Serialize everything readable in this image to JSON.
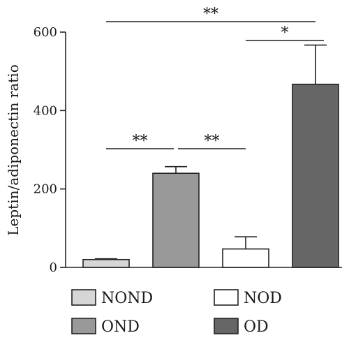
{
  "chart_data": {
    "type": "bar",
    "categories": [
      "NOND",
      "OND",
      "NOD",
      "OD"
    ],
    "values": [
      20,
      240,
      47,
      467
    ],
    "errors": [
      2,
      17,
      31,
      100
    ],
    "colors": [
      "#d6d6d6",
      "#999999",
      "#ffffff",
      "#666666"
    ],
    "ylabel": "Leptin/adiponectin ratio",
    "ylim": [
      0,
      600
    ],
    "yticks": [
      0,
      200,
      400,
      600
    ],
    "grid": false,
    "legend": {
      "placement": "bottom",
      "entries": [
        "NOND",
        "NOD",
        "OND",
        "OD"
      ]
    },
    "significance": [
      {
        "from": "NOND",
        "to": "OD",
        "label": "**"
      },
      {
        "from": "NOND",
        "to": "OND",
        "label": "**"
      },
      {
        "from": "OND",
        "to": "NOD",
        "label": "**"
      },
      {
        "from": "NOD",
        "to": "OD",
        "label": "*"
      }
    ]
  }
}
